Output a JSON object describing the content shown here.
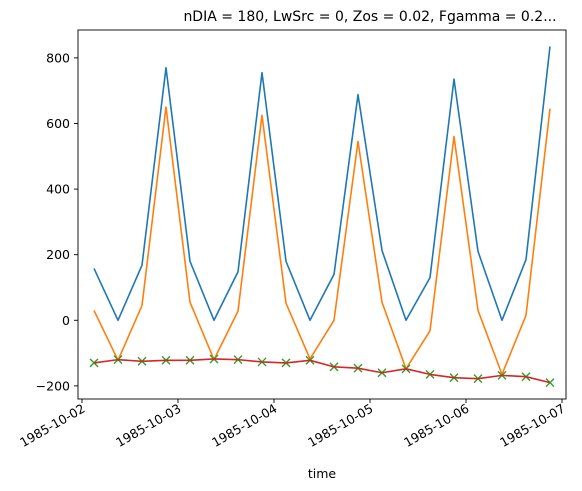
{
  "chart_data": {
    "type": "line",
    "title": "nDIA = 180, LwSrc = 0, Zos = 0.02, Fgamma = 0.2...",
    "xlabel": "time",
    "ylabel": "",
    "x_is_time": true,
    "x": [
      "1985-10-02T03:00",
      "1985-10-02T09:00",
      "1985-10-02T15:00",
      "1985-10-02T21:00",
      "1985-10-03T03:00",
      "1985-10-03T09:00",
      "1985-10-03T15:00",
      "1985-10-03T21:00",
      "1985-10-04T03:00",
      "1985-10-04T09:00",
      "1985-10-04T15:00",
      "1985-10-04T21:00",
      "1985-10-05T03:00",
      "1985-10-05T09:00",
      "1985-10-05T15:00",
      "1985-10-05T21:00",
      "1985-10-06T03:00",
      "1985-10-06T09:00",
      "1985-10-06T15:00",
      "1985-10-06T21:00"
    ],
    "xlim": [
      "1985-10-01T23:00",
      "1985-10-07T01:00"
    ],
    "xticks": [
      "1985-10-02",
      "1985-10-03",
      "1985-10-04",
      "1985-10-05",
      "1985-10-06",
      "1985-10-07"
    ],
    "ylim": [
      -240,
      885
    ],
    "yticks": [
      -200,
      0,
      200,
      400,
      600,
      800
    ],
    "grid": false,
    "series": [
      {
        "color": "#1f77b4",
        "marker": "none",
        "values": [
          158,
          0,
          168,
          770,
          180,
          0,
          148,
          755,
          180,
          0,
          140,
          688,
          213,
          0,
          130,
          735,
          210,
          0,
          185,
          835
        ]
      },
      {
        "color": "#ff7f0e",
        "marker": "none",
        "values": [
          30,
          -122,
          45,
          650,
          55,
          -120,
          28,
          625,
          52,
          -118,
          0,
          545,
          55,
          -148,
          -32,
          560,
          30,
          -165,
          15,
          645
        ]
      },
      {
        "color": "#2ca02c",
        "marker": "x",
        "linestyle": "none",
        "values": [
          -130,
          -120,
          -125,
          -122,
          -122,
          -118,
          -120,
          -127,
          -130,
          -122,
          -142,
          -146,
          -160,
          -148,
          -165,
          -175,
          -178,
          -168,
          -172,
          -190
        ]
      },
      {
        "color": "#d62728",
        "marker": "none",
        "values": [
          -130,
          -120,
          -125,
          -122,
          -122,
          -118,
          -120,
          -127,
          -130,
          -122,
          -142,
          -146,
          -160,
          -148,
          -165,
          -175,
          -178,
          -168,
          -172,
          -190
        ]
      }
    ]
  }
}
